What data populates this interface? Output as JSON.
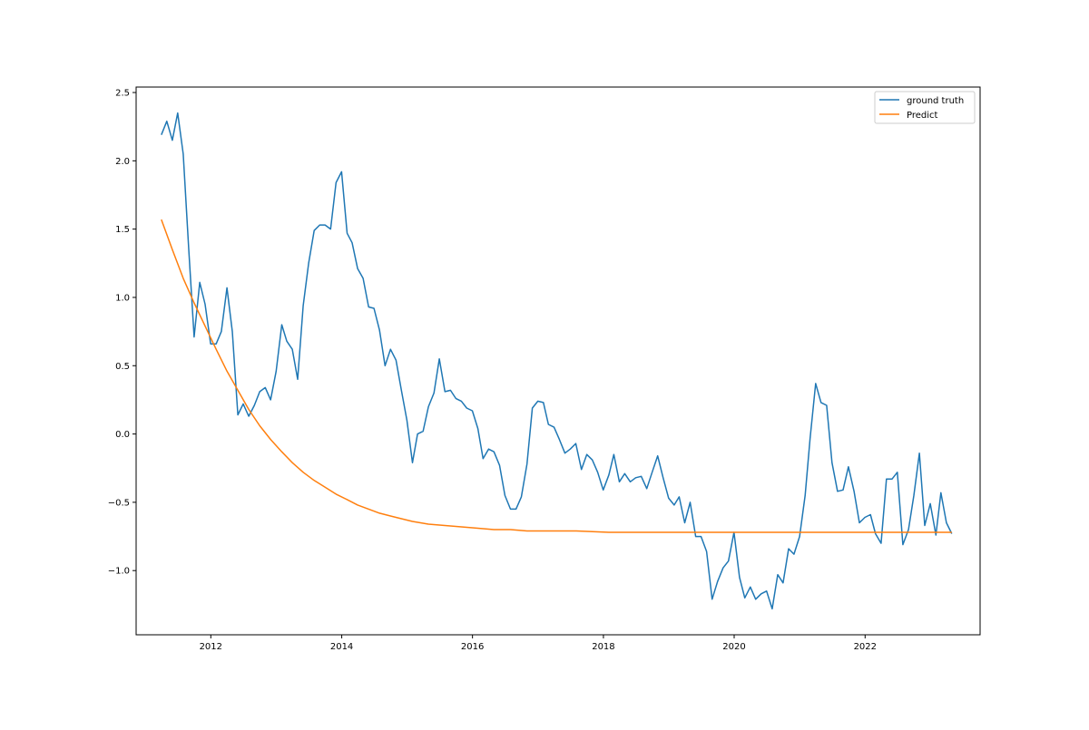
{
  "chart_data": {
    "type": "line",
    "title": "",
    "xlabel": "",
    "ylabel": "",
    "x_axis": {
      "kind": "date",
      "ticks": [
        "2012",
        "2014",
        "2016",
        "2018",
        "2020",
        "2022"
      ]
    },
    "y_axis": {
      "ticks": [
        "2.5",
        "2.0",
        "1.5",
        "1.0",
        "0.5",
        "0.0",
        "-0.5",
        "-1.0"
      ]
    },
    "xlim": [
      "2010-11-10",
      "2023-10-05"
    ],
    "ylim": [
      -1.47,
      2.54
    ],
    "grid": false,
    "legend": {
      "placement": "top-right",
      "entries": [
        "ground truth",
        "Predict"
      ]
    },
    "series": [
      {
        "name": "ground truth",
        "color": "#1f77b4",
        "points": [
          [
            "2011-03-31",
            2.19
          ],
          [
            "2011-04-30",
            2.29
          ],
          [
            "2011-05-31",
            2.15
          ],
          [
            "2011-06-30",
            2.35
          ],
          [
            "2011-07-31",
            2.05
          ],
          [
            "2011-08-31",
            1.35
          ],
          [
            "2011-09-30",
            0.71
          ],
          [
            "2011-10-31",
            1.11
          ],
          [
            "2011-11-30",
            0.95
          ],
          [
            "2011-12-31",
            0.66
          ],
          [
            "2012-01-31",
            0.66
          ],
          [
            "2012-02-29",
            0.75
          ],
          [
            "2012-03-31",
            1.07
          ],
          [
            "2012-04-30",
            0.75
          ],
          [
            "2012-05-31",
            0.14
          ],
          [
            "2012-06-30",
            0.22
          ],
          [
            "2012-07-31",
            0.13
          ],
          [
            "2012-08-31",
            0.21
          ],
          [
            "2012-09-30",
            0.31
          ],
          [
            "2012-10-31",
            0.34
          ],
          [
            "2012-11-30",
            0.25
          ],
          [
            "2012-12-31",
            0.46
          ],
          [
            "2013-01-31",
            0.8
          ],
          [
            "2013-02-28",
            0.68
          ],
          [
            "2013-03-31",
            0.62
          ],
          [
            "2013-04-30",
            0.4
          ],
          [
            "2013-05-31",
            0.94
          ],
          [
            "2013-06-30",
            1.25
          ],
          [
            "2013-07-31",
            1.49
          ],
          [
            "2013-08-31",
            1.53
          ],
          [
            "2013-09-30",
            1.53
          ],
          [
            "2013-10-31",
            1.5
          ],
          [
            "2013-11-30",
            1.84
          ],
          [
            "2013-12-31",
            1.92
          ],
          [
            "2014-01-31",
            1.47
          ],
          [
            "2014-02-28",
            1.4
          ],
          [
            "2014-03-31",
            1.21
          ],
          [
            "2014-04-30",
            1.14
          ],
          [
            "2014-05-31",
            0.93
          ],
          [
            "2014-06-30",
            0.92
          ],
          [
            "2014-07-31",
            0.76
          ],
          [
            "2014-08-31",
            0.5
          ],
          [
            "2014-09-30",
            0.62
          ],
          [
            "2014-10-31",
            0.54
          ],
          [
            "2014-11-30",
            0.32
          ],
          [
            "2014-12-31",
            0.1
          ],
          [
            "2015-01-31",
            -0.21
          ],
          [
            "2015-02-28",
            0.0
          ],
          [
            "2015-03-31",
            0.02
          ],
          [
            "2015-04-30",
            0.2
          ],
          [
            "2015-05-31",
            0.3
          ],
          [
            "2015-06-30",
            0.55
          ],
          [
            "2015-07-31",
            0.31
          ],
          [
            "2015-08-31",
            0.32
          ],
          [
            "2015-09-30",
            0.26
          ],
          [
            "2015-10-31",
            0.24
          ],
          [
            "2015-11-30",
            0.19
          ],
          [
            "2015-12-31",
            0.17
          ],
          [
            "2016-01-31",
            0.04
          ],
          [
            "2016-02-29",
            -0.18
          ],
          [
            "2016-03-31",
            -0.11
          ],
          [
            "2016-04-30",
            -0.13
          ],
          [
            "2016-05-31",
            -0.23
          ],
          [
            "2016-06-30",
            -0.45
          ],
          [
            "2016-07-31",
            -0.55
          ],
          [
            "2016-08-31",
            -0.55
          ],
          [
            "2016-09-30",
            -0.46
          ],
          [
            "2016-10-31",
            -0.22
          ],
          [
            "2016-11-30",
            0.19
          ],
          [
            "2016-12-31",
            0.24
          ],
          [
            "2017-01-31",
            0.23
          ],
          [
            "2017-02-28",
            0.07
          ],
          [
            "2017-03-31",
            0.05
          ],
          [
            "2017-04-30",
            -0.04
          ],
          [
            "2017-05-31",
            -0.14
          ],
          [
            "2017-06-30",
            -0.11
          ],
          [
            "2017-07-31",
            -0.07
          ],
          [
            "2017-08-31",
            -0.26
          ],
          [
            "2017-09-30",
            -0.15
          ],
          [
            "2017-10-31",
            -0.19
          ],
          [
            "2017-11-30",
            -0.28
          ],
          [
            "2017-12-31",
            -0.41
          ],
          [
            "2018-01-31",
            -0.3
          ],
          [
            "2018-02-28",
            -0.15
          ],
          [
            "2018-03-31",
            -0.35
          ],
          [
            "2018-04-30",
            -0.29
          ],
          [
            "2018-05-31",
            -0.35
          ],
          [
            "2018-06-30",
            -0.32
          ],
          [
            "2018-07-31",
            -0.31
          ],
          [
            "2018-08-31",
            -0.4
          ],
          [
            "2018-09-30",
            -0.28
          ],
          [
            "2018-10-31",
            -0.16
          ],
          [
            "2018-11-30",
            -0.32
          ],
          [
            "2018-12-31",
            -0.47
          ],
          [
            "2019-01-31",
            -0.52
          ],
          [
            "2019-02-28",
            -0.46
          ],
          [
            "2019-03-31",
            -0.65
          ],
          [
            "2019-04-30",
            -0.5
          ],
          [
            "2019-05-31",
            -0.75
          ],
          [
            "2019-06-30",
            -0.75
          ],
          [
            "2019-07-31",
            -0.86
          ],
          [
            "2019-08-31",
            -1.21
          ],
          [
            "2019-09-30",
            -1.08
          ],
          [
            "2019-10-31",
            -0.98
          ],
          [
            "2019-11-30",
            -0.93
          ],
          [
            "2019-12-31",
            -0.72
          ],
          [
            "2020-01-31",
            -1.05
          ],
          [
            "2020-02-29",
            -1.2
          ],
          [
            "2020-03-31",
            -1.12
          ],
          [
            "2020-04-30",
            -1.21
          ],
          [
            "2020-05-31",
            -1.17
          ],
          [
            "2020-06-30",
            -1.15
          ],
          [
            "2020-07-31",
            -1.28
          ],
          [
            "2020-08-31",
            -1.03
          ],
          [
            "2020-09-30",
            -1.09
          ],
          [
            "2020-10-31",
            -0.84
          ],
          [
            "2020-11-30",
            -0.88
          ],
          [
            "2020-12-31",
            -0.75
          ],
          [
            "2021-01-31",
            -0.45
          ],
          [
            "2021-02-28",
            -0.03
          ],
          [
            "2021-03-31",
            0.37
          ],
          [
            "2021-04-30",
            0.23
          ],
          [
            "2021-05-31",
            0.21
          ],
          [
            "2021-06-30",
            -0.21
          ],
          [
            "2021-07-31",
            -0.42
          ],
          [
            "2021-08-31",
            -0.41
          ],
          [
            "2021-09-30",
            -0.24
          ],
          [
            "2021-10-31",
            -0.42
          ],
          [
            "2021-11-30",
            -0.65
          ],
          [
            "2021-12-31",
            -0.61
          ],
          [
            "2022-01-31",
            -0.59
          ],
          [
            "2022-02-28",
            -0.73
          ],
          [
            "2022-03-31",
            -0.8
          ],
          [
            "2022-04-30",
            -0.33
          ],
          [
            "2022-05-31",
            -0.33
          ],
          [
            "2022-06-30",
            -0.28
          ],
          [
            "2022-07-31",
            -0.81
          ],
          [
            "2022-08-31",
            -0.7
          ],
          [
            "2022-09-30",
            -0.45
          ],
          [
            "2022-10-31",
            -0.14
          ],
          [
            "2022-11-30",
            -0.67
          ],
          [
            "2022-12-31",
            -0.51
          ],
          [
            "2023-01-31",
            -0.74
          ],
          [
            "2023-02-28",
            -0.43
          ],
          [
            "2023-03-31",
            -0.65
          ],
          [
            "2023-04-30",
            -0.73
          ]
        ]
      },
      {
        "name": "Predict",
        "color": "#ff7f0e",
        "points": [
          [
            "2011-03-31",
            1.57
          ],
          [
            "2011-05-31",
            1.35
          ],
          [
            "2011-07-31",
            1.14
          ],
          [
            "2011-09-30",
            0.96
          ],
          [
            "2011-11-30",
            0.79
          ],
          [
            "2012-01-31",
            0.62
          ],
          [
            "2012-03-31",
            0.46
          ],
          [
            "2012-05-31",
            0.32
          ],
          [
            "2012-07-31",
            0.18
          ],
          [
            "2012-09-30",
            0.06
          ],
          [
            "2012-11-30",
            -0.04
          ],
          [
            "2013-01-31",
            -0.13
          ],
          [
            "2013-03-31",
            -0.21
          ],
          [
            "2013-05-31",
            -0.28
          ],
          [
            "2013-07-31",
            -0.34
          ],
          [
            "2013-09-30",
            -0.39
          ],
          [
            "2013-11-30",
            -0.44
          ],
          [
            "2014-01-31",
            -0.48
          ],
          [
            "2014-03-31",
            -0.52
          ],
          [
            "2014-05-31",
            -0.55
          ],
          [
            "2014-07-31",
            -0.58
          ],
          [
            "2014-09-30",
            -0.6
          ],
          [
            "2014-11-30",
            -0.62
          ],
          [
            "2015-01-31",
            -0.64
          ],
          [
            "2015-04-30",
            -0.66
          ],
          [
            "2015-07-31",
            -0.67
          ],
          [
            "2015-10-31",
            -0.68
          ],
          [
            "2016-01-31",
            -0.69
          ],
          [
            "2016-04-30",
            -0.7
          ],
          [
            "2016-07-31",
            -0.7
          ],
          [
            "2016-10-31",
            -0.71
          ],
          [
            "2017-01-31",
            -0.71
          ],
          [
            "2017-07-31",
            -0.71
          ],
          [
            "2018-01-31",
            -0.72
          ],
          [
            "2018-07-31",
            -0.72
          ],
          [
            "2019-01-31",
            -0.72
          ],
          [
            "2020-01-31",
            -0.72
          ],
          [
            "2021-01-31",
            -0.72
          ],
          [
            "2022-01-31",
            -0.72
          ],
          [
            "2023-04-30",
            -0.72
          ]
        ]
      }
    ]
  }
}
